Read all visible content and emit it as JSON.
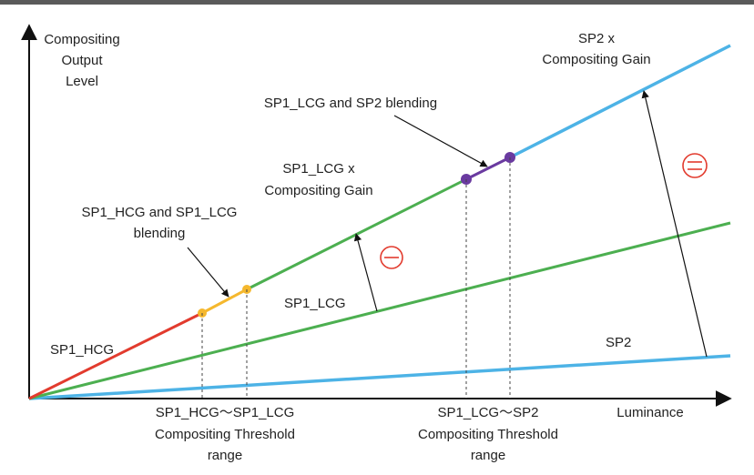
{
  "axes": {
    "y_label": [
      "Compositing",
      "Output",
      "Level"
    ],
    "x_label": "Luminance"
  },
  "lines": {
    "sp1_hcg": "SP1_HCG",
    "sp1_lcg": "SP1_LCG",
    "sp2": "SP2",
    "sp1_lcg_gain": [
      "SP1_LCG x",
      "Compositing Gain"
    ],
    "sp2_gain": [
      "SP2 x",
      "Compositing Gain"
    ]
  },
  "blending": {
    "hcg_lcg": [
      "SP1_HCG and SP1_LCG",
      "blending"
    ],
    "lcg_sp2": "SP1_LCG and SP2 blending"
  },
  "thresholds": {
    "hcg_lcg": [
      "SP1_HCG〜SP1_LCG",
      "Compositing Threshold",
      "range"
    ],
    "lcg_sp2": [
      "SP1_LCG〜SP2",
      "Compositing Threshold",
      "range"
    ]
  },
  "colors": {
    "sp1_hcg": "#e23b2e",
    "sp1_lcg": "#4caf50",
    "sp2": "#4db3e6",
    "blend_hcg_lcg": "#f5b82e",
    "blend_lcg_sp2": "#6a3aa0",
    "gain_symbol": "#e23b2e"
  },
  "gain_symbols": [
    "minus-circle-icon",
    "minus-circle-icon"
  ]
}
